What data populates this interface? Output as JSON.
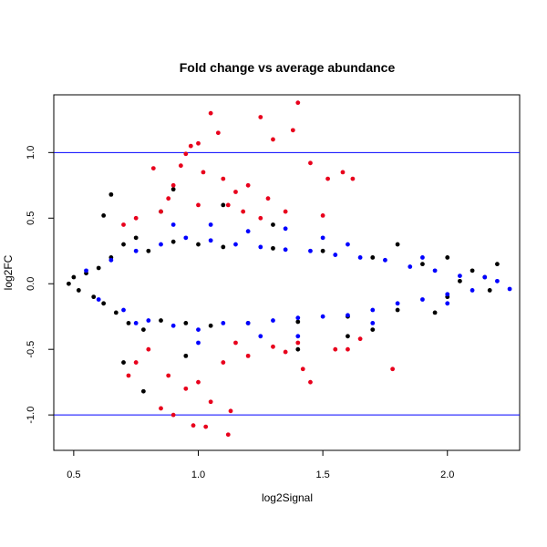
{
  "chart_data": {
    "type": "scatter",
    "title": "Fold change vs average abundance",
    "xlabel": "log2Signal",
    "ylabel": "log2FC",
    "xlim": [
      0.42,
      2.29
    ],
    "ylim": [
      -1.27,
      1.44
    ],
    "x_ticks": [
      {
        "value": 0.5,
        "label": "0.5"
      },
      {
        "value": 1.0,
        "label": "1.0"
      },
      {
        "value": 1.5,
        "label": "1.5"
      },
      {
        "value": 2.0,
        "label": "2.0"
      }
    ],
    "y_ticks": [
      {
        "value": -1.0,
        "label": "-1.0"
      },
      {
        "value": -0.5,
        "label": "-0.5"
      },
      {
        "value": 0.0,
        "label": "0.0"
      },
      {
        "value": 0.5,
        "label": "0.5"
      },
      {
        "value": 1.0,
        "label": "1.0"
      }
    ],
    "reference_lines": [
      {
        "axis": "y",
        "value": 1.0,
        "color": "#0000ff"
      },
      {
        "axis": "y",
        "value": -1.0,
        "color": "#0000ff"
      }
    ],
    "grid": false,
    "legend": "none",
    "colors": {
      "black": "#000000",
      "blue": "#0000ff",
      "red": "#e8001c"
    },
    "series": [
      {
        "color": "#000000",
        "points": [
          [
            0.48,
            0.0
          ],
          [
            0.5,
            0.05
          ],
          [
            0.52,
            -0.05
          ],
          [
            0.55,
            0.08
          ],
          [
            0.58,
            -0.1
          ],
          [
            0.6,
            0.12
          ],
          [
            0.62,
            -0.15
          ],
          [
            0.65,
            0.2
          ],
          [
            0.67,
            -0.22
          ],
          [
            0.7,
            0.3
          ],
          [
            0.72,
            -0.3
          ],
          [
            0.75,
            0.35
          ],
          [
            0.78,
            -0.35
          ],
          [
            0.8,
            0.25
          ],
          [
            0.85,
            -0.28
          ],
          [
            0.9,
            0.32
          ],
          [
            0.95,
            -0.3
          ],
          [
            1.0,
            0.3
          ],
          [
            1.05,
            -0.32
          ],
          [
            1.1,
            0.28
          ],
          [
            1.2,
            -0.3
          ],
          [
            1.3,
            0.27
          ],
          [
            1.4,
            -0.29
          ],
          [
            1.5,
            0.25
          ],
          [
            1.6,
            -0.25
          ],
          [
            1.7,
            0.2
          ],
          [
            1.8,
            -0.2
          ],
          [
            1.9,
            0.15
          ],
          [
            2.0,
            -0.1
          ],
          [
            2.1,
            0.1
          ],
          [
            2.15,
            0.05
          ],
          [
            2.2,
            0.15
          ],
          [
            2.17,
            -0.05
          ],
          [
            2.05,
            0.02
          ],
          [
            0.65,
            0.68
          ],
          [
            0.78,
            -0.82
          ],
          [
            0.7,
            -0.6
          ],
          [
            0.62,
            0.52
          ],
          [
            0.85,
            0.55
          ],
          [
            0.95,
            -0.55
          ],
          [
            1.1,
            0.6
          ],
          [
            1.4,
            -0.5
          ],
          [
            1.3,
            0.45
          ],
          [
            1.6,
            -0.4
          ],
          [
            1.8,
            0.3
          ],
          [
            1.95,
            -0.22
          ],
          [
            2.0,
            0.2
          ],
          [
            1.7,
            -0.35
          ],
          [
            0.9,
            0.72
          ]
        ]
      },
      {
        "color": "#0000ff",
        "points": [
          [
            0.55,
            0.1
          ],
          [
            0.6,
            -0.12
          ],
          [
            0.65,
            0.18
          ],
          [
            0.7,
            -0.2
          ],
          [
            0.75,
            0.25
          ],
          [
            0.8,
            -0.28
          ],
          [
            0.85,
            0.3
          ],
          [
            0.9,
            -0.32
          ],
          [
            0.95,
            0.35
          ],
          [
            1.0,
            -0.35
          ],
          [
            1.05,
            0.33
          ],
          [
            1.1,
            -0.3
          ],
          [
            1.15,
            0.3
          ],
          [
            1.2,
            -0.3
          ],
          [
            1.25,
            0.28
          ],
          [
            1.3,
            -0.28
          ],
          [
            1.35,
            0.26
          ],
          [
            1.4,
            -0.26
          ],
          [
            1.45,
            0.25
          ],
          [
            1.5,
            -0.25
          ],
          [
            1.55,
            0.22
          ],
          [
            1.6,
            -0.24
          ],
          [
            1.65,
            0.2
          ],
          [
            1.7,
            -0.2
          ],
          [
            1.75,
            0.18
          ],
          [
            1.8,
            -0.15
          ],
          [
            1.85,
            0.13
          ],
          [
            1.9,
            -0.12
          ],
          [
            1.95,
            0.1
          ],
          [
            2.0,
            -0.08
          ],
          [
            2.05,
            0.06
          ],
          [
            2.1,
            -0.05
          ],
          [
            2.2,
            0.02
          ],
          [
            2.25,
            -0.04
          ],
          [
            2.15,
            0.05
          ],
          [
            0.9,
            0.45
          ],
          [
            1.0,
            -0.45
          ],
          [
            1.2,
            0.4
          ],
          [
            1.4,
            -0.4
          ],
          [
            1.35,
            0.42
          ],
          [
            1.6,
            0.3
          ],
          [
            1.7,
            -0.3
          ],
          [
            1.9,
            0.2
          ],
          [
            2.0,
            -0.15
          ],
          [
            0.75,
            -0.3
          ],
          [
            1.05,
            0.45
          ],
          [
            1.5,
            0.35
          ],
          [
            1.25,
            -0.4
          ]
        ]
      },
      {
        "color": "#e8001c",
        "points": [
          [
            0.82,
            0.88
          ],
          [
            0.88,
            0.65
          ],
          [
            0.9,
            0.75
          ],
          [
            0.93,
            0.9
          ],
          [
            0.95,
            0.99
          ],
          [
            0.97,
            1.05
          ],
          [
            1.0,
            1.07
          ],
          [
            1.02,
            0.85
          ],
          [
            1.05,
            1.3
          ],
          [
            1.08,
            1.15
          ],
          [
            1.1,
            0.8
          ],
          [
            1.12,
            0.6
          ],
          [
            1.15,
            0.7
          ],
          [
            1.2,
            0.75
          ],
          [
            1.25,
            1.27
          ],
          [
            1.3,
            1.1
          ],
          [
            1.38,
            1.17
          ],
          [
            1.4,
            1.38
          ],
          [
            1.45,
            0.92
          ],
          [
            1.52,
            0.8
          ],
          [
            1.58,
            0.85
          ],
          [
            1.62,
            0.8
          ],
          [
            1.35,
            0.55
          ],
          [
            1.28,
            0.65
          ],
          [
            0.75,
            0.5
          ],
          [
            0.7,
            0.45
          ],
          [
            0.85,
            -0.95
          ],
          [
            0.9,
            -1.0
          ],
          [
            0.98,
            -1.08
          ],
          [
            1.03,
            -1.09
          ],
          [
            1.12,
            -1.15
          ],
          [
            1.13,
            -0.97
          ],
          [
            1.05,
            -0.9
          ],
          [
            0.95,
            -0.8
          ],
          [
            1.0,
            -0.75
          ],
          [
            0.88,
            -0.7
          ],
          [
            0.8,
            -0.5
          ],
          [
            0.72,
            -0.7
          ],
          [
            0.75,
            -0.6
          ],
          [
            1.1,
            -0.6
          ],
          [
            1.2,
            -0.55
          ],
          [
            1.3,
            -0.48
          ],
          [
            1.4,
            -0.45
          ],
          [
            1.45,
            -0.75
          ],
          [
            1.42,
            -0.65
          ],
          [
            1.55,
            -0.5
          ],
          [
            1.6,
            -0.5
          ],
          [
            1.65,
            -0.42
          ],
          [
            1.78,
            -0.65
          ],
          [
            1.15,
            -0.45
          ],
          [
            1.35,
            -0.52
          ],
          [
            0.85,
            0.55
          ],
          [
            1.0,
            0.6
          ],
          [
            1.18,
            0.55
          ],
          [
            1.5,
            0.52
          ],
          [
            1.25,
            0.5
          ]
        ]
      }
    ]
  }
}
